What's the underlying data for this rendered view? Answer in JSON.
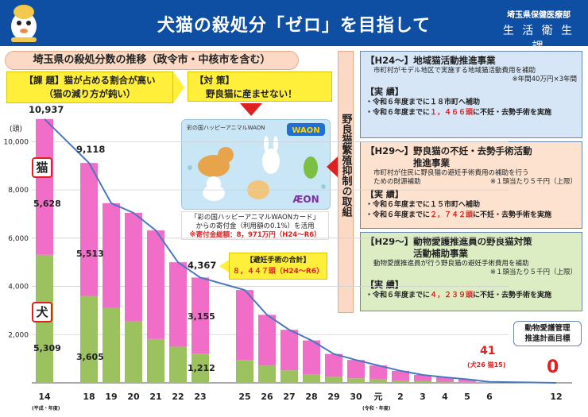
{
  "header": {
    "title": "犬猫の殺処分「ゼロ」を目指して",
    "dept": "埼玉県保健医療部",
    "section": "生 活 衛 生 課",
    "colors": {
      "bar": "#0f4fa3"
    }
  },
  "panel": {
    "subtitle": "埼玉県の殺処分数の推移（政令市・中核市を含む）",
    "issue_line1": "【課 題】猫が占める割合が高い",
    "issue_line2": "（猫の減り方が鈍い）",
    "measure_line1": "【対 策】",
    "measure_line2": "野良猫に産ませない！",
    "card_text1": "彩の国ハッピーアニマルWAON",
    "card_text2": "WAON",
    "card_text3": "ÆON",
    "card_note1": "「彩の国ハッピーアニマルWAONカード」",
    "card_note2": "からの寄付金（利用額の0.1%）を活用",
    "card_note3": "※寄付金総額：8，971万円（H24～R6）",
    "surg_title": "【避妊手術の合計】",
    "surg_value": "８，４４７頭（H24～R6）",
    "vertical_label": "野良猫繁殖抑制の取組"
  },
  "programs": [
    {
      "title": "【H24～】地域猫活動推進事業",
      "desc": "市町村がモデル地区で実施する地域猫活動費用を補助",
      "note": "※年間40万円×3年間",
      "results_label": "【実 績】",
      "result1": "・令和６年度までに１８市町へ補助",
      "result2_pre": "・令和６年度までに",
      "result2_num": "１，４６６頭",
      "result2_post": "に不妊・去勢手術を実施"
    },
    {
      "title1": "【H29～】野良猫の不妊・去勢手術活動",
      "title2": "推進事業",
      "desc1": "市町村が住民に野良猫の避妊手術費用の補助を行う",
      "desc2": "ための財源補助",
      "note": "※１頭当たり５千円（上限）",
      "results_label": "【実 績】",
      "result1": "・令和６年度までに１５市町へ補助",
      "result2_pre": "・令和６年度までに",
      "result2_num": "２，７４２頭",
      "result2_post": "に不妊・去勢手術を実施"
    },
    {
      "title1": "【H29～】動物愛護推進員の野良猫対策",
      "title2": "活動補助事業",
      "desc": "動物愛護推進員が行う野良猫の避妊手術費用を補助",
      "note": "※１頭当たり５千円（上限）",
      "results_label": "【実 績】",
      "result_pre": "・令和６年度までに",
      "result_num": "４，２３９頭",
      "result_post": "に不妊・去勢手術を実施"
    }
  ],
  "plan": {
    "line1": "動物愛護管理",
    "line2": "推進計画目標"
  },
  "labels": {
    "cat_tag": "猫",
    "dog_tag": "犬",
    "total_14": "10,937",
    "cat_14": "5,628",
    "dog_14": "5,309",
    "total_18": "9,118",
    "cat_18": "5,513",
    "dog_18": "3,605",
    "total_23": "4,367",
    "cat_23": "3,155",
    "dog_23": "1,212",
    "val_6": "41",
    "val_6_note": "(犬26 猫15)",
    "val_12": "0",
    "x_note_left": "(平成・年度)",
    "x_note_mid": "(令和・年度)"
  },
  "chart_data": {
    "type": "bar",
    "stacked": true,
    "ylabel": "(頭)",
    "ylim": [
      0,
      11000
    ],
    "yticks": [
      "10,000",
      "8,000",
      "6,000",
      "4,000",
      "2,000"
    ],
    "ytick_values": [
      10000,
      8000,
      6000,
      4000,
      2000
    ],
    "categories": [
      "14",
      "18",
      "19",
      "20",
      "21",
      "22",
      "23",
      "25",
      "26",
      "27",
      "28",
      "29",
      "30",
      "元",
      "2",
      "3",
      "4",
      "5",
      "6",
      "12"
    ],
    "series": [
      {
        "name": "犬",
        "color": "#9bc25f",
        "values": [
          5309,
          3605,
          3100,
          2550,
          1820,
          1500,
          1212,
          950,
          720,
          520,
          360,
          250,
          190,
          140,
          100,
          70,
          50,
          38,
          26,
          0
        ]
      },
      {
        "name": "猫",
        "color": "#f06ec8",
        "values": [
          5628,
          5513,
          4350,
          4500,
          4500,
          3500,
          3155,
          2900,
          2100,
          1680,
          1400,
          950,
          760,
          580,
          400,
          260,
          180,
          110,
          15,
          0
        ]
      }
    ],
    "totals": [
      10937,
      9118,
      7450,
      7050,
      6320,
      5000,
      4367,
      3850,
      2820,
      2200,
      1760,
      1200,
      950,
      720,
      500,
      330,
      230,
      148,
      41,
      0
    ],
    "line_color": "#4a78bf",
    "grid": true
  }
}
